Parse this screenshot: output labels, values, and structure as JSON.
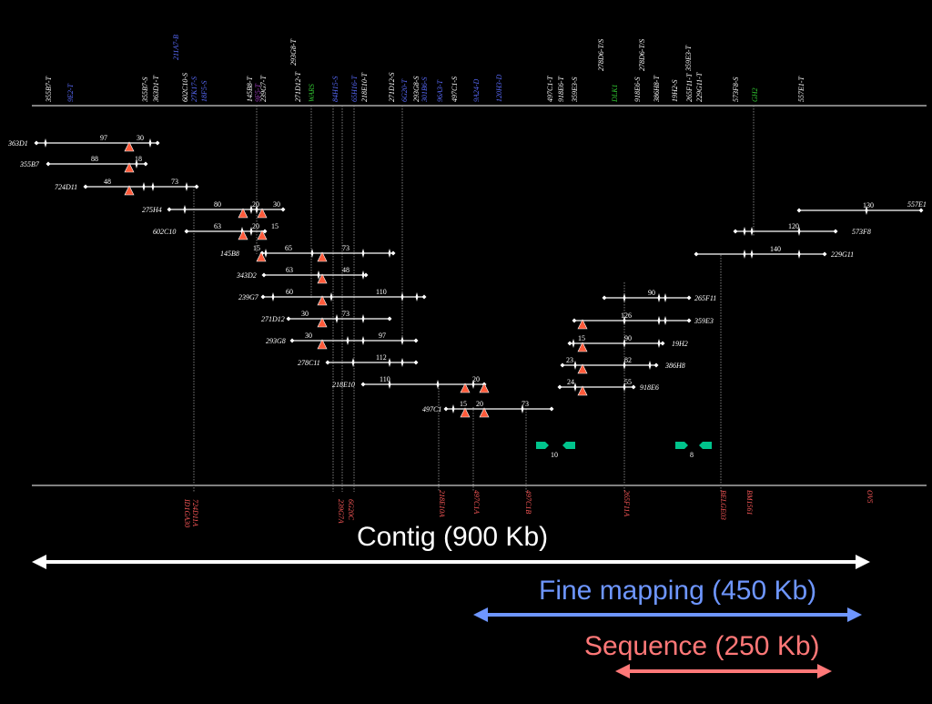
{
  "colors": {
    "background": "#000000",
    "line": "#ffffff",
    "triangle": "#ff5a3a",
    "blue_label": "#5a6cff",
    "green_label": "#33cc33",
    "purple_label": "#a040c0",
    "red_label": "#ff5a5a",
    "fine_arrow": "#6e96ff",
    "seq_arrow": "#ff7878",
    "gene": "#00c48c"
  },
  "top_markers": [
    {
      "label": "355B7-T",
      "color": "white"
    },
    {
      "label": "9E2-T",
      "color": "blue"
    },
    {
      "label": "355B7-S",
      "color": "white"
    },
    {
      "label": "363D1-T",
      "color": "white"
    },
    {
      "label": "602C10-S",
      "color": "white"
    },
    {
      "label": "27K17-S",
      "color": "blue"
    },
    {
      "label": "18F5-S",
      "color": "blue"
    },
    {
      "label": "145B8-T",
      "color": "white"
    },
    {
      "label": "239G7-T",
      "color": "white"
    },
    {
      "label": "9F5-T",
      "color": "purple"
    },
    {
      "label": "271D12-T",
      "color": "white"
    },
    {
      "label": "WARS",
      "color": "green"
    },
    {
      "label": "84H15-S",
      "color": "blue"
    },
    {
      "label": "65H16-T",
      "color": "blue"
    },
    {
      "label": "218E10-T",
      "color": "white"
    },
    {
      "label": "271D12-S",
      "color": "white"
    },
    {
      "label": "6G20-T",
      "color": "blue"
    },
    {
      "label": "293G8-S",
      "color": "white"
    },
    {
      "label": "301B6-S",
      "color": "blue"
    },
    {
      "label": "96A3-T",
      "color": "blue"
    },
    {
      "label": "497C1-S",
      "color": "white"
    },
    {
      "label": "9A24-D",
      "color": "blue"
    },
    {
      "label": "120H3-D",
      "color": "blue"
    },
    {
      "label": "497C1-T",
      "color": "white"
    },
    {
      "label": "918E6-T",
      "color": "white"
    },
    {
      "label": "359E3-S",
      "color": "white"
    },
    {
      "label": "DLK1",
      "color": "green"
    },
    {
      "label": "918E6-S",
      "color": "white"
    },
    {
      "label": "386H8-T",
      "color": "white"
    },
    {
      "label": "19H2-S",
      "color": "white"
    },
    {
      "label": "265F11-T",
      "color": "white"
    },
    {
      "label": "573F8-S",
      "color": "white"
    },
    {
      "label": "GH2",
      "color": "green"
    },
    {
      "label": "557E1-T",
      "color": "white"
    }
  ],
  "upper_markers": [
    {
      "label": "211A7-B",
      "color": "blue"
    },
    {
      "label": "293G8-T",
      "color": "white"
    },
    {
      "label": "278D6-T/S",
      "color": "white"
    },
    {
      "label": "278D6-T/S",
      "color": "white"
    },
    {
      "label": "359E3-T",
      "color": "white"
    },
    {
      "label": "229G11-T",
      "color": "white"
    }
  ],
  "clones": [
    {
      "name": "363D1",
      "numbers": [
        "97",
        "30"
      ]
    },
    {
      "name": "355B7",
      "numbers": [
        "88",
        "18"
      ]
    },
    {
      "name": "724D11",
      "numbers": [
        "48",
        "73"
      ]
    },
    {
      "name": "275H4",
      "numbers": [
        "80",
        "20",
        "30"
      ]
    },
    {
      "name": "602C10",
      "numbers": [
        "63",
        "20",
        "15"
      ]
    },
    {
      "name": "145B8",
      "numbers": [
        "15",
        "65",
        "73"
      ]
    },
    {
      "name": "343D2",
      "numbers": [
        "63",
        "48"
      ]
    },
    {
      "name": "239G7",
      "numbers": [
        "60",
        "110"
      ]
    },
    {
      "name": "271D12",
      "numbers": [
        "30",
        "73"
      ]
    },
    {
      "name": "293G8",
      "numbers": [
        "30",
        "97"
      ]
    },
    {
      "name": "278C11",
      "numbers": [
        "112"
      ]
    },
    {
      "name": "218E10",
      "numbers": [
        "110",
        "20"
      ]
    },
    {
      "name": "497C1",
      "numbers": [
        "15",
        "20",
        "73"
      ]
    },
    {
      "name": "557E1",
      "numbers": [
        "130"
      ]
    },
    {
      "name": "573F8",
      "numbers": [
        "120"
      ]
    },
    {
      "name": "229G11",
      "numbers": [
        "140"
      ]
    },
    {
      "name": "265F11",
      "numbers": [
        "90"
      ]
    },
    {
      "name": "359E3",
      "numbers": [
        "126"
      ]
    },
    {
      "name": "19H2",
      "numbers": [
        "15",
        "90"
      ]
    },
    {
      "name": "386H8",
      "numbers": [
        "23",
        "82"
      ]
    },
    {
      "name": "918E6",
      "numbers": [
        "24",
        "55"
      ]
    }
  ],
  "gene_labels": [
    "10",
    "8"
  ],
  "bottom_markers": [
    {
      "label": "724D11A"
    },
    {
      "label": "ID1GA30"
    },
    {
      "label": "6G20C"
    },
    {
      "label": "239G7A"
    },
    {
      "label": "218E10A"
    },
    {
      "label": "497C1A"
    },
    {
      "label": "497C1B"
    },
    {
      "label": "265F11A"
    },
    {
      "label": "BELGE03"
    },
    {
      "label": "BM1561"
    },
    {
      "label": "OV5"
    }
  ],
  "banners": {
    "contig": "Contig (900 Kb)",
    "fine": "Fine mapping (450 Kb)",
    "sequence": "Sequence (250 Kb)"
  }
}
